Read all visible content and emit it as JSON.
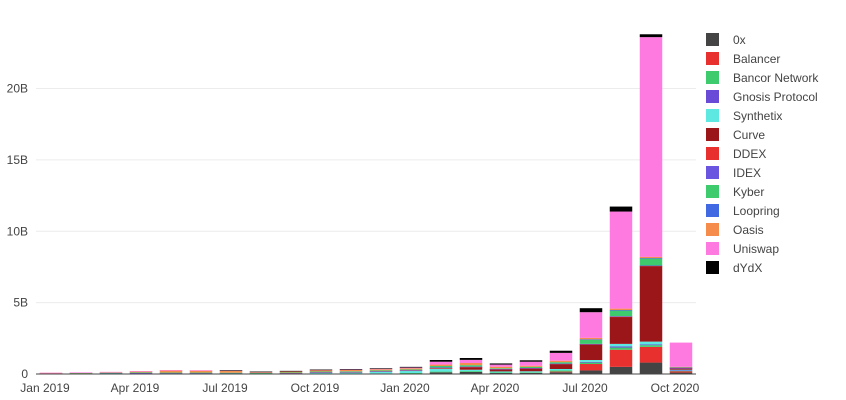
{
  "chart_data": {
    "type": "bar",
    "stacked": true,
    "title": "",
    "xlabel": "",
    "ylabel": "",
    "ylim": [
      0,
      24.8
    ],
    "y_tick_values": [
      0,
      5,
      10,
      15,
      20
    ],
    "y_tick_labels": [
      "0",
      "5B",
      "10B",
      "15B",
      "20B"
    ],
    "x_tick_labels": [
      "Jan 2019",
      "Apr 2019",
      "Jul 2019",
      "Oct 2019",
      "Jan 2020",
      "Apr 2020",
      "Jul 2020",
      "Oct 2020"
    ],
    "x_tick_category_index": [
      0,
      3,
      6,
      9,
      12,
      15,
      18,
      21
    ],
    "grid": true,
    "legend_position": "right",
    "categories": [
      "2019-01",
      "2019-02",
      "2019-03",
      "2019-04",
      "2019-05",
      "2019-06",
      "2019-07",
      "2019-08",
      "2019-09",
      "2019-10",
      "2019-11",
      "2019-12",
      "2020-01",
      "2020-02",
      "2020-03",
      "2020-04",
      "2020-05",
      "2020-06",
      "2020-07",
      "2020-08",
      "2020-09",
      "2020-10"
    ],
    "series": [
      {
        "name": "0x",
        "color": "#444444",
        "values": [
          0.01,
          0.01,
          0.01,
          0.01,
          0.01,
          0.01,
          0.01,
          0.01,
          0.01,
          0.01,
          0.02,
          0.03,
          0.04,
          0.12,
          0.14,
          0.07,
          0.08,
          0.12,
          0.25,
          0.5,
          0.8,
          0.1
        ]
      },
      {
        "name": "Balancer",
        "color": "#e8302f",
        "values": [
          0,
          0,
          0,
          0,
          0,
          0,
          0,
          0,
          0,
          0,
          0,
          0,
          0,
          0,
          0,
          0,
          0,
          0.05,
          0.45,
          1.2,
          1.1,
          0.1
        ]
      },
      {
        "name": "Bancor Network",
        "color": "#3ecb6e",
        "values": [
          0.01,
          0.01,
          0.01,
          0.01,
          0.02,
          0.02,
          0.01,
          0.01,
          0.01,
          0.01,
          0.01,
          0.01,
          0.03,
          0.05,
          0.06,
          0.04,
          0.04,
          0.08,
          0.1,
          0.15,
          0.12,
          0.03
        ]
      },
      {
        "name": "Gnosis Protocol",
        "color": "#6a4bd8",
        "values": [
          0,
          0,
          0,
          0,
          0,
          0,
          0,
          0,
          0,
          0,
          0,
          0,
          0,
          0,
          0,
          0,
          0,
          0,
          0.05,
          0.08,
          0.05,
          0.02
        ]
      },
      {
        "name": "Synthetix",
        "color": "#5de8e1",
        "values": [
          0,
          0,
          0,
          0,
          0,
          0,
          0,
          0,
          0.03,
          0.1,
          0.1,
          0.15,
          0.17,
          0.2,
          0.1,
          0.07,
          0.07,
          0.1,
          0.13,
          0.18,
          0.2,
          0.05
        ]
      },
      {
        "name": "Curve",
        "color": "#9b1619",
        "values": [
          0,
          0,
          0,
          0,
          0,
          0,
          0,
          0,
          0,
          0,
          0,
          0,
          0,
          0.05,
          0.18,
          0.15,
          0.2,
          0.35,
          1.1,
          1.9,
          5.3,
          0.1
        ]
      },
      {
        "name": "DDEX",
        "color": "#e8302f",
        "values": [
          0.01,
          0.01,
          0.01,
          0.01,
          0.01,
          0.01,
          0.01,
          0.01,
          0.01,
          0.01,
          0.01,
          0.01,
          0.01,
          0.01,
          0.01,
          0.01,
          0.01,
          0.01,
          0.01,
          0.01,
          0.01,
          0.01
        ]
      },
      {
        "name": "IDEX",
        "color": "#6a55e0",
        "values": [
          0.02,
          0.03,
          0.04,
          0.06,
          0.04,
          0.04,
          0.04,
          0.03,
          0.03,
          0.02,
          0.02,
          0.02,
          0.02,
          0.03,
          0.03,
          0.02,
          0.02,
          0.02,
          0.02,
          0.03,
          0.02,
          0.01
        ]
      },
      {
        "name": "Kyber",
        "color": "#3ecb6e",
        "values": [
          0.01,
          0.01,
          0.02,
          0.02,
          0.02,
          0.02,
          0.02,
          0.02,
          0.02,
          0.03,
          0.03,
          0.03,
          0.05,
          0.1,
          0.1,
          0.05,
          0.08,
          0.1,
          0.3,
          0.4,
          0.5,
          0.05
        ]
      },
      {
        "name": "Loopring",
        "color": "#4169e1",
        "values": [
          0,
          0,
          0,
          0,
          0,
          0,
          0,
          0,
          0,
          0,
          0,
          0,
          0,
          0,
          0,
          0,
          0,
          0,
          0.02,
          0.03,
          0.02,
          0.01
        ]
      },
      {
        "name": "Oasis",
        "color": "#f58c4b",
        "values": [
          0.02,
          0.03,
          0.05,
          0.08,
          0.16,
          0.15,
          0.15,
          0.07,
          0.08,
          0.1,
          0.1,
          0.08,
          0.08,
          0.1,
          0.15,
          0.1,
          0.08,
          0.1,
          0.1,
          0.1,
          0.08,
          0.02
        ]
      },
      {
        "name": "Uniswap",
        "color": "#ff7ae0",
        "values": [
          0.01,
          0.01,
          0.01,
          0.01,
          0.01,
          0.01,
          0.01,
          0.01,
          0.02,
          0.02,
          0.03,
          0.05,
          0.05,
          0.2,
          0.22,
          0.15,
          0.28,
          0.55,
          1.8,
          6.8,
          15.4,
          1.7
        ]
      },
      {
        "name": "dYdX",
        "color": "#000000",
        "values": [
          0,
          0,
          0,
          0,
          0,
          0,
          0.01,
          0.01,
          0.01,
          0.01,
          0.02,
          0.02,
          0.05,
          0.12,
          0.13,
          0.08,
          0.1,
          0.15,
          0.28,
          0.35,
          0.2,
          0
        ]
      }
    ]
  }
}
